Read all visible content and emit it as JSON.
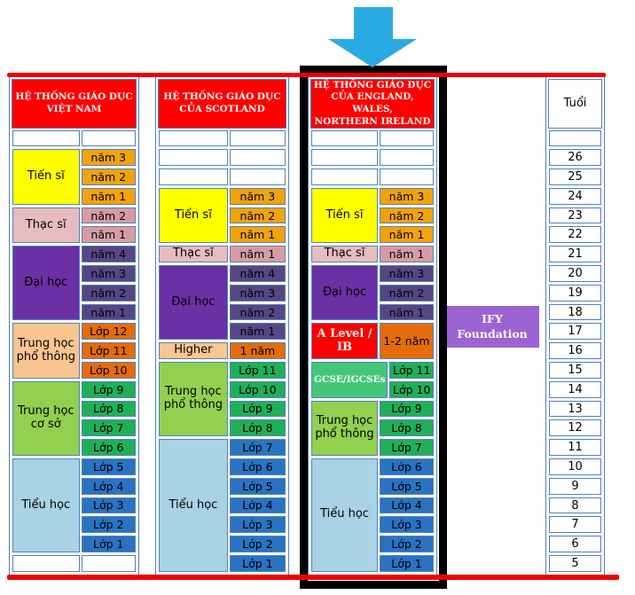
{
  "colors": {
    "red_line": "#EE0004",
    "header_bg": "#FF0000",
    "header_fg": "#FFFFFF",
    "cell_border": "#4F81BD",
    "arrow": "#29ABE2",
    "frame": "#000000",
    "ify_bg": "#9C63D3",
    "yellow": "#FFFF00",
    "amber": "#F2A30B",
    "pink_label": "#E7BCC0",
    "pink_cell": "#D89BA3",
    "purple_label": "#6B30A5",
    "purple_cell": "#574684",
    "peach": "#FBC590",
    "dark_orange": "#E46C0A",
    "light_green": "#92D050",
    "medium_green": "#44C679",
    "green_cell": "#1FB057",
    "light_blue": "#A9D2E4",
    "blue_cell": "#2A73C2"
  },
  "ify_box": {
    "text": "IFY\nFoundation",
    "bg": "#9C63D3"
  },
  "age_column": {
    "header": "Tuổi",
    "ages": [
      "26",
      "25",
      "24",
      "23",
      "22",
      "21",
      "20",
      "19",
      "18",
      "17",
      "16",
      "15",
      "14",
      "13",
      "12",
      "11",
      "10",
      "9",
      "8",
      "7",
      "6",
      "5"
    ]
  },
  "columns": [
    {
      "id": "vietnam",
      "header": {
        "text": "HỆ THỐNG GIÁO DỤC\nVIỆT NAM",
        "bg": "#FF0000",
        "fg": "#FFFFFF"
      },
      "sections": [
        {
          "empty_rows": 1
        },
        {
          "label": "Tiến sĩ",
          "label_bg": "#FFFF00",
          "cell_bg": "#F2A30B",
          "cells": [
            {
              "t": "năm 3"
            },
            {
              "t": "năm 2"
            },
            {
              "t": "năm 1"
            }
          ]
        },
        {
          "label": "Thạc sĩ",
          "label_bg": "#E7BCC0",
          "cell_bg": "#D89BA3",
          "cells": [
            {
              "t": "năm 2"
            },
            {
              "t": "năm 1"
            }
          ]
        },
        {
          "label": "Đại học",
          "label_bg": "#6B30A5",
          "cell_bg": "#574684",
          "cells": [
            {
              "t": "năm 4"
            },
            {
              "t": "năm 3"
            },
            {
              "t": "năm 2"
            },
            {
              "t": "năm 1"
            }
          ]
        },
        {
          "label": "Trung học phổ thông",
          "label_bg": "#FBC590",
          "cell_bg": "#E46C0A",
          "cells": [
            {
              "t": "Lớp 12"
            },
            {
              "t": "Lớp 11"
            },
            {
              "t": "Lớp 10"
            }
          ]
        },
        {
          "label": "Trung học cơ sở",
          "label_bg": "#92D050",
          "cell_bg": "#1FB057",
          "cells": [
            {
              "t": "Lớp 9"
            },
            {
              "t": "Lớp 8"
            },
            {
              "t": "Lớp 7"
            },
            {
              "t": "Lớp 6"
            }
          ]
        },
        {
          "label": "Tiểu học",
          "label_bg": "#A9D2E4",
          "cell_bg": "#2A73C2",
          "cells": [
            {
              "t": "Lớp 5"
            },
            {
              "t": "Lớp 4"
            },
            {
              "t": "Lớp 3"
            },
            {
              "t": "Lớp 2"
            },
            {
              "t": "Lớp 1"
            }
          ]
        },
        {
          "empty_rows": 1
        }
      ]
    },
    {
      "id": "scotland",
      "header": {
        "text": "HỆ THỐNG GIÁO DỤC\nCỦA SCOTLAND",
        "bg": "#FF0000",
        "fg": "#FFFFFF"
      },
      "sections": [
        {
          "empty_rows": 3
        },
        {
          "label": "Tiến sĩ",
          "label_bg": "#FFFF00",
          "cell_bg": "#F2A30B",
          "cells": [
            {
              "t": "năm 3"
            },
            {
              "t": "năm 2"
            },
            {
              "t": "năm 1"
            }
          ]
        },
        {
          "label": "Thạc sĩ",
          "label_bg": "#E7BCC0",
          "cell_bg": "#D89BA3",
          "cells": [
            {
              "t": "năm 1"
            }
          ]
        },
        {
          "label": "Đại học",
          "label_bg": "#6B30A5",
          "cell_bg": "#574684",
          "cells": [
            {
              "t": "năm 4"
            },
            {
              "t": "năm 3"
            },
            {
              "t": "năm 2"
            },
            {
              "t": "năm 1"
            }
          ]
        },
        {
          "label": "Higher",
          "label_bg": "#FBC590",
          "cell_bg": "#E46C0A",
          "cells": [
            {
              "t": "1 năm"
            }
          ]
        },
        {
          "label": "Trung học phổ thông",
          "label_bg": "#92D050",
          "cell_bg": "#1FB057",
          "cells": [
            {
              "t": "Lớp 11"
            },
            {
              "t": "Lớp 10"
            },
            {
              "t": "Lớp 9"
            },
            {
              "t": "Lớp 8"
            }
          ]
        },
        {
          "label": "Tiểu học",
          "label_bg": "#A9D2E4",
          "cell_bg": "#2A73C2",
          "cells": [
            {
              "t": "Lớp 7"
            },
            {
              "t": "Lớp 6"
            },
            {
              "t": "Lớp 5"
            },
            {
              "t": "Lớp 4"
            },
            {
              "t": "Lớp 3"
            },
            {
              "t": "Lớp 2"
            },
            {
              "t": "Lớp 1"
            }
          ]
        }
      ]
    },
    {
      "id": "england",
      "header": {
        "text": "HỆ THỐNG GIÁO DỤC\nCỦA ENGLAND, WALES,\nNORTHERN IRELAND",
        "bg": "#FF0000",
        "fg": "#FFFFFF"
      },
      "sections": [
        {
          "empty_rows": 3
        },
        {
          "label": "Tiến sĩ",
          "label_bg": "#FFFF00",
          "cell_bg": "#F2A30B",
          "cells": [
            {
              "t": "năm 3"
            },
            {
              "t": "năm 2"
            },
            {
              "t": "năm 1"
            }
          ]
        },
        {
          "label": "Thạc sĩ",
          "label_bg": "#E7BCC0",
          "cell_bg": "#D89BA3",
          "cells": [
            {
              "t": "năm 1"
            }
          ]
        },
        {
          "label": "Đại học",
          "label_bg": "#6B30A5",
          "cell_bg": "#574684",
          "cells": [
            {
              "t": "năm 3"
            },
            {
              "t": "năm 2"
            },
            {
              "t": "năm 1"
            }
          ]
        },
        {
          "label": "A Level / IB",
          "label_bg": "#FF0000",
          "label_fg": "#FFFFFF",
          "label_serif": true,
          "cell_bg": "#E46C0A",
          "cells": [
            {
              "t": "1-2 năm",
              "span": 2
            }
          ]
        },
        {
          "label": "GCSE/IGCSEs",
          "label_bg": "#44C679",
          "label_fg": "#FFFFFF",
          "label_serif": true,
          "label_small": true,
          "cell_bg": "#1FB057",
          "cells": [
            {
              "t": "Lớp 11"
            },
            {
              "t": "Lớp 10"
            }
          ]
        },
        {
          "label": "Trung học phổ thông",
          "label_bg": "#92D050",
          "cell_bg": "#1FB057",
          "cells": [
            {
              "t": "Lớp 9"
            },
            {
              "t": "Lớp 8"
            },
            {
              "t": "Lớp 7"
            }
          ]
        },
        {
          "label": "Tiểu học",
          "label_bg": "#A9D2E4",
          "cell_bg": "#2A73C2",
          "cells": [
            {
              "t": "Lớp 6"
            },
            {
              "t": "Lớp 5"
            },
            {
              "t": "Lớp 4"
            },
            {
              "t": "Lớp 3"
            },
            {
              "t": "Lớp 2"
            },
            {
              "t": "Lớp 1"
            }
          ]
        }
      ]
    }
  ]
}
